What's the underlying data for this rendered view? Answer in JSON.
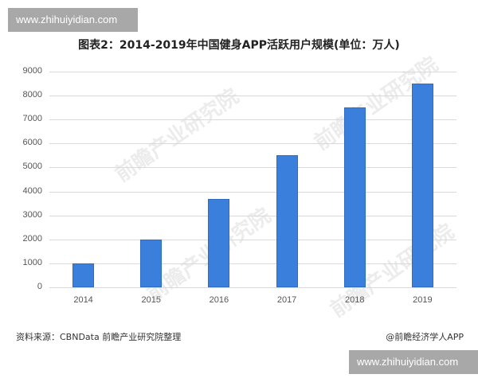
{
  "watermark_badges": {
    "top": "www.zhihuiyidian.com",
    "bottom": "www.zhihuiyidian.com"
  },
  "background_watermark": "前瞻产业研究院",
  "footer": {
    "source": "资料来源：CBNData 前瞻产业研究院整理",
    "credit": "@前瞻经济学人APP"
  },
  "colors": {
    "bar": "#3b7fdd",
    "grid": "#d9d9d9",
    "badge": "#a8a8a8"
  },
  "chart_data": {
    "type": "bar",
    "title": "图表2：2014-2019年中国健身APP活跃用户规模(单位：万人)",
    "xlabel": "",
    "ylabel": "",
    "categories": [
      "2014",
      "2015",
      "2016",
      "2017",
      "2018",
      "2019"
    ],
    "values": [
      1000,
      2000,
      3700,
      5500,
      7500,
      8500
    ],
    "unit": "万人",
    "ylim": [
      0,
      9000
    ],
    "yticks": [
      "9000",
      "8000",
      "7000",
      "6000",
      "5000",
      "4000",
      "3000",
      "2000",
      "1000",
      "0"
    ],
    "grid": true,
    "legend": null
  }
}
